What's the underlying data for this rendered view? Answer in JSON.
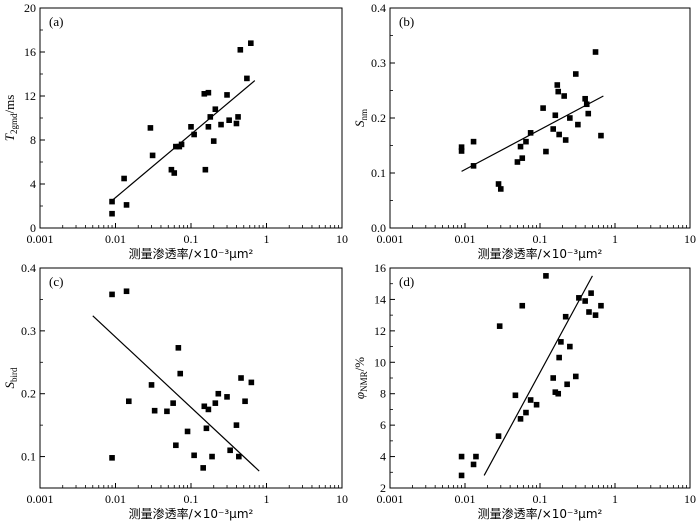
{
  "chart_data": [
    {
      "panel": "(a)",
      "type": "scatter",
      "xlabel": "测量渗透率/×10⁻³μm²",
      "ylabel": "T2gmd/ms",
      "ylabel_main": "T",
      "ylabel_sub": "2gmd",
      "ylabel_rest": "/ms",
      "xscale": "log",
      "xlim": [
        0.001,
        10
      ],
      "ylim": [
        0,
        20
      ],
      "x_ticks": [
        "0.001",
        "0.01",
        "0.1",
        "1",
        "10"
      ],
      "y_ticks": [
        "0",
        "4",
        "8",
        "12",
        "16",
        "20"
      ],
      "points": [
        [
          0.009,
          1.3
        ],
        [
          0.009,
          2.4
        ],
        [
          0.013,
          4.5
        ],
        [
          0.014,
          2.1
        ],
        [
          0.029,
          9.1
        ],
        [
          0.031,
          6.6
        ],
        [
          0.055,
          5.3
        ],
        [
          0.06,
          5.0
        ],
        [
          0.063,
          7.4
        ],
        [
          0.07,
          7.4
        ],
        [
          0.075,
          7.6
        ],
        [
          0.1,
          9.2
        ],
        [
          0.11,
          8.5
        ],
        [
          0.15,
          12.2
        ],
        [
          0.155,
          5.3
        ],
        [
          0.17,
          9.2
        ],
        [
          0.17,
          12.3
        ],
        [
          0.18,
          10.1
        ],
        [
          0.2,
          7.9
        ],
        [
          0.21,
          10.8
        ],
        [
          0.25,
          9.4
        ],
        [
          0.3,
          12.1
        ],
        [
          0.32,
          9.8
        ],
        [
          0.4,
          9.5
        ],
        [
          0.42,
          10.1
        ],
        [
          0.45,
          16.2
        ],
        [
          0.55,
          13.6
        ],
        [
          0.62,
          16.8
        ]
      ],
      "fit_line": [
        [
          0.009,
          2.5
        ],
        [
          0.7,
          13.4
        ]
      ]
    },
    {
      "panel": "(b)",
      "type": "scatter",
      "xlabel": "测量渗透率/×10⁻³μm²",
      "ylabel": "Snm",
      "ylabel_main": "S",
      "ylabel_sub": "nm",
      "ylabel_rest": "",
      "xscale": "log",
      "xlim": [
        0.001,
        10
      ],
      "ylim": [
        0.0,
        0.4
      ],
      "x_ticks": [
        "0.001",
        "0.01",
        "0.1",
        "1",
        "10"
      ],
      "y_ticks": [
        "0.0",
        "0.1",
        "0.2",
        "0.3",
        "0.4"
      ],
      "points": [
        [
          0.009,
          0.14
        ],
        [
          0.009,
          0.147
        ],
        [
          0.013,
          0.113
        ],
        [
          0.013,
          0.157
        ],
        [
          0.028,
          0.08
        ],
        [
          0.03,
          0.071
        ],
        [
          0.05,
          0.12
        ],
        [
          0.055,
          0.148
        ],
        [
          0.058,
          0.127
        ],
        [
          0.065,
          0.157
        ],
        [
          0.075,
          0.173
        ],
        [
          0.11,
          0.218
        ],
        [
          0.12,
          0.139
        ],
        [
          0.15,
          0.18
        ],
        [
          0.16,
          0.205
        ],
        [
          0.17,
          0.26
        ],
        [
          0.175,
          0.248
        ],
        [
          0.18,
          0.17
        ],
        [
          0.21,
          0.24
        ],
        [
          0.22,
          0.16
        ],
        [
          0.25,
          0.2
        ],
        [
          0.3,
          0.28
        ],
        [
          0.32,
          0.188
        ],
        [
          0.4,
          0.235
        ],
        [
          0.42,
          0.225
        ],
        [
          0.44,
          0.208
        ],
        [
          0.55,
          0.32
        ],
        [
          0.65,
          0.168
        ]
      ],
      "fit_line": [
        [
          0.009,
          0.103
        ],
        [
          0.7,
          0.24
        ]
      ]
    },
    {
      "panel": "(c)",
      "type": "scatter",
      "xlabel": "测量渗透率/×10⁻³μm²",
      "ylabel": "Sbird",
      "ylabel_main": "S",
      "ylabel_sub": "bird",
      "ylabel_rest": "",
      "xscale": "log",
      "xlim": [
        0.001,
        10
      ],
      "ylim": [
        0.05,
        0.4
      ],
      "x_ticks": [
        "0.001",
        "0.01",
        "0.1",
        "1",
        "10"
      ],
      "y_ticks": [
        "0.1",
        "0.2",
        "0.3",
        "0.4"
      ],
      "points": [
        [
          0.009,
          0.358
        ],
        [
          0.009,
          0.098
        ],
        [
          0.014,
          0.363
        ],
        [
          0.015,
          0.188
        ],
        [
          0.03,
          0.214
        ],
        [
          0.033,
          0.173
        ],
        [
          0.048,
          0.172
        ],
        [
          0.058,
          0.185
        ],
        [
          0.063,
          0.118
        ],
        [
          0.068,
          0.273
        ],
        [
          0.072,
          0.232
        ],
        [
          0.09,
          0.14
        ],
        [
          0.11,
          0.102
        ],
        [
          0.145,
          0.082
        ],
        [
          0.15,
          0.18
        ],
        [
          0.16,
          0.145
        ],
        [
          0.17,
          0.175
        ],
        [
          0.19,
          0.1
        ],
        [
          0.21,
          0.185
        ],
        [
          0.23,
          0.2
        ],
        [
          0.3,
          0.195
        ],
        [
          0.33,
          0.11
        ],
        [
          0.4,
          0.15
        ],
        [
          0.43,
          0.1
        ],
        [
          0.46,
          0.225
        ],
        [
          0.52,
          0.188
        ],
        [
          0.63,
          0.218
        ]
      ],
      "fit_line": [
        [
          0.005,
          0.324
        ],
        [
          0.8,
          0.077
        ]
      ]
    },
    {
      "panel": "(d)",
      "type": "scatter",
      "xlabel": "测量渗透率/×10⁻³μm²",
      "ylabel": "φNMR/%",
      "ylabel_main": "φ",
      "ylabel_sub": "NMR",
      "ylabel_rest": "/%",
      "xscale": "log",
      "xlim": [
        0.001,
        10
      ],
      "ylim": [
        2,
        16
      ],
      "x_ticks": [
        "0.001",
        "0.01",
        "0.1",
        "1",
        "10"
      ],
      "y_ticks": [
        "2",
        "4",
        "6",
        "8",
        "10",
        "12",
        "14",
        "16"
      ],
      "points": [
        [
          0.009,
          2.8
        ],
        [
          0.009,
          4.0
        ],
        [
          0.013,
          3.5
        ],
        [
          0.014,
          4.0
        ],
        [
          0.028,
          5.3
        ],
        [
          0.029,
          12.3
        ],
        [
          0.047,
          7.9
        ],
        [
          0.055,
          6.4
        ],
        [
          0.058,
          13.6
        ],
        [
          0.065,
          6.8
        ],
        [
          0.075,
          7.6
        ],
        [
          0.09,
          7.3
        ],
        [
          0.12,
          15.5
        ],
        [
          0.15,
          9.0
        ],
        [
          0.16,
          8.1
        ],
        [
          0.175,
          8.0
        ],
        [
          0.18,
          10.3
        ],
        [
          0.19,
          11.3
        ],
        [
          0.22,
          12.9
        ],
        [
          0.23,
          8.6
        ],
        [
          0.25,
          11.0
        ],
        [
          0.3,
          9.1
        ],
        [
          0.33,
          14.1
        ],
        [
          0.4,
          13.9
        ],
        [
          0.45,
          13.2
        ],
        [
          0.48,
          14.4
        ],
        [
          0.55,
          13.0
        ],
        [
          0.65,
          13.6
        ]
      ],
      "fit_line": [
        [
          0.018,
          2.8
        ],
        [
          0.5,
          15.5
        ]
      ]
    }
  ]
}
